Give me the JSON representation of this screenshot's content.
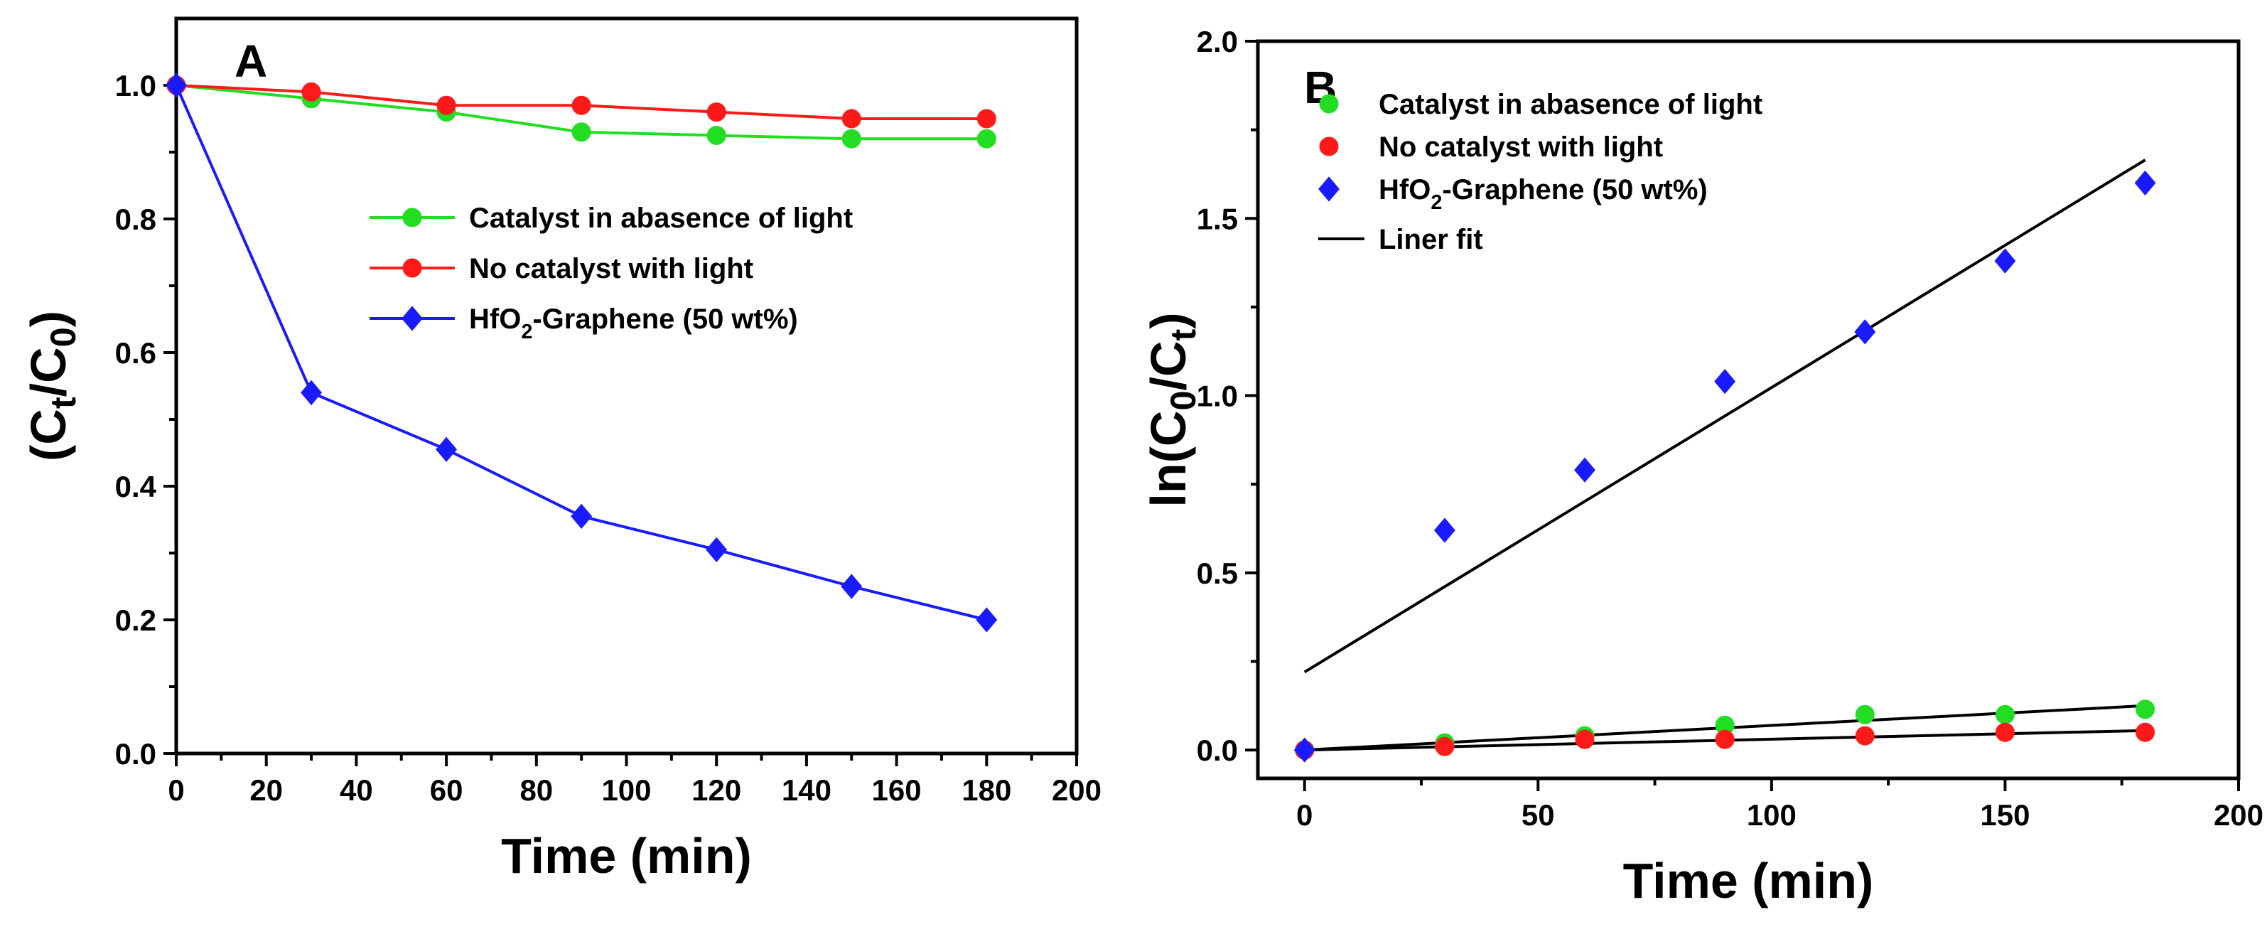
{
  "chart_data": [
    {
      "panel": "A",
      "type": "line",
      "xlabel": "Time (min)",
      "ylabel_parts": [
        "(C",
        "t",
        "/C",
        "0",
        ")"
      ],
      "xlim": [
        0,
        200
      ],
      "ylim": [
        0,
        1.1
      ],
      "xticks": [
        0,
        20,
        40,
        60,
        80,
        100,
        120,
        140,
        160,
        180,
        200
      ],
      "yticks": [
        0.0,
        0.2,
        0.4,
        0.6,
        0.8,
        1.0
      ],
      "ytick_labels": [
        "0.0",
        "0.2",
        "0.4",
        "0.6",
        "0.8",
        "1.0"
      ],
      "legend_position": "center-right",
      "series": [
        {
          "name": "Catalyst in abasence of light",
          "color": "#22dd22",
          "marker": "circle",
          "line": true,
          "x": [
            0,
            30,
            60,
            90,
            120,
            150,
            180
          ],
          "y": [
            1.0,
            0.98,
            0.96,
            0.93,
            0.925,
            0.92,
            0.92
          ]
        },
        {
          "name": "No catalyst with light",
          "color": "#ff1a1a",
          "marker": "circle",
          "line": true,
          "x": [
            0,
            30,
            60,
            90,
            120,
            150,
            180
          ],
          "y": [
            1.0,
            0.99,
            0.97,
            0.97,
            0.96,
            0.95,
            0.95
          ]
        },
        {
          "name_parts": [
            "HfO",
            "2",
            "-Graphene (50 wt%)"
          ],
          "color": "#1a1aff",
          "marker": "diamond",
          "line": true,
          "x": [
            0,
            30,
            60,
            90,
            120,
            150,
            180
          ],
          "y": [
            1.0,
            0.54,
            0.455,
            0.355,
            0.305,
            0.25,
            0.2
          ]
        }
      ]
    },
    {
      "panel": "B",
      "type": "scatter",
      "xlabel": "Time (min)",
      "ylabel_parts": [
        "ln(C",
        "0",
        "/C",
        "t",
        ")"
      ],
      "xlim": [
        -10,
        200
      ],
      "ylim": [
        -0.08,
        2.0
      ],
      "xticks": [
        0,
        50,
        100,
        150,
        200
      ],
      "yticks": [
        0.0,
        0.5,
        1.0,
        1.5,
        2.0
      ],
      "ytick_labels": [
        "0.0",
        "0.5",
        "1.0",
        "1.5",
        "2.0"
      ],
      "legend_position": "top-left",
      "series": [
        {
          "name": "Catalyst in abasence of light",
          "color": "#22dd22",
          "marker": "circle",
          "x": [
            0,
            30,
            60,
            90,
            120,
            150,
            180
          ],
          "y": [
            0.0,
            0.02,
            0.04,
            0.07,
            0.1,
            0.1,
            0.115
          ]
        },
        {
          "name": "No catalyst with light",
          "color": "#ff1a1a",
          "marker": "circle",
          "x": [
            0,
            30,
            60,
            90,
            120,
            150,
            180
          ],
          "y": [
            0.0,
            0.01,
            0.03,
            0.03,
            0.04,
            0.05,
            0.05
          ]
        },
        {
          "name_parts": [
            "HfO",
            "2",
            "-Graphene (50 wt%)"
          ],
          "color": "#1a1aff",
          "marker": "diamond",
          "x": [
            0,
            30,
            60,
            90,
            120,
            150,
            180
          ],
          "y": [
            0.0,
            0.62,
            0.79,
            1.04,
            1.18,
            1.38,
            1.6
          ]
        }
      ],
      "fits": [
        {
          "name": "Liner fit",
          "color": "#000000",
          "x": [
            0,
            180
          ],
          "y": [
            0.22,
            1.665
          ]
        },
        {
          "color": "#000000",
          "x": [
            0,
            180
          ],
          "y": [
            0.0,
            0.125
          ]
        },
        {
          "color": "#000000",
          "x": [
            0,
            180
          ],
          "y": [
            0.0,
            0.055
          ]
        }
      ]
    }
  ]
}
